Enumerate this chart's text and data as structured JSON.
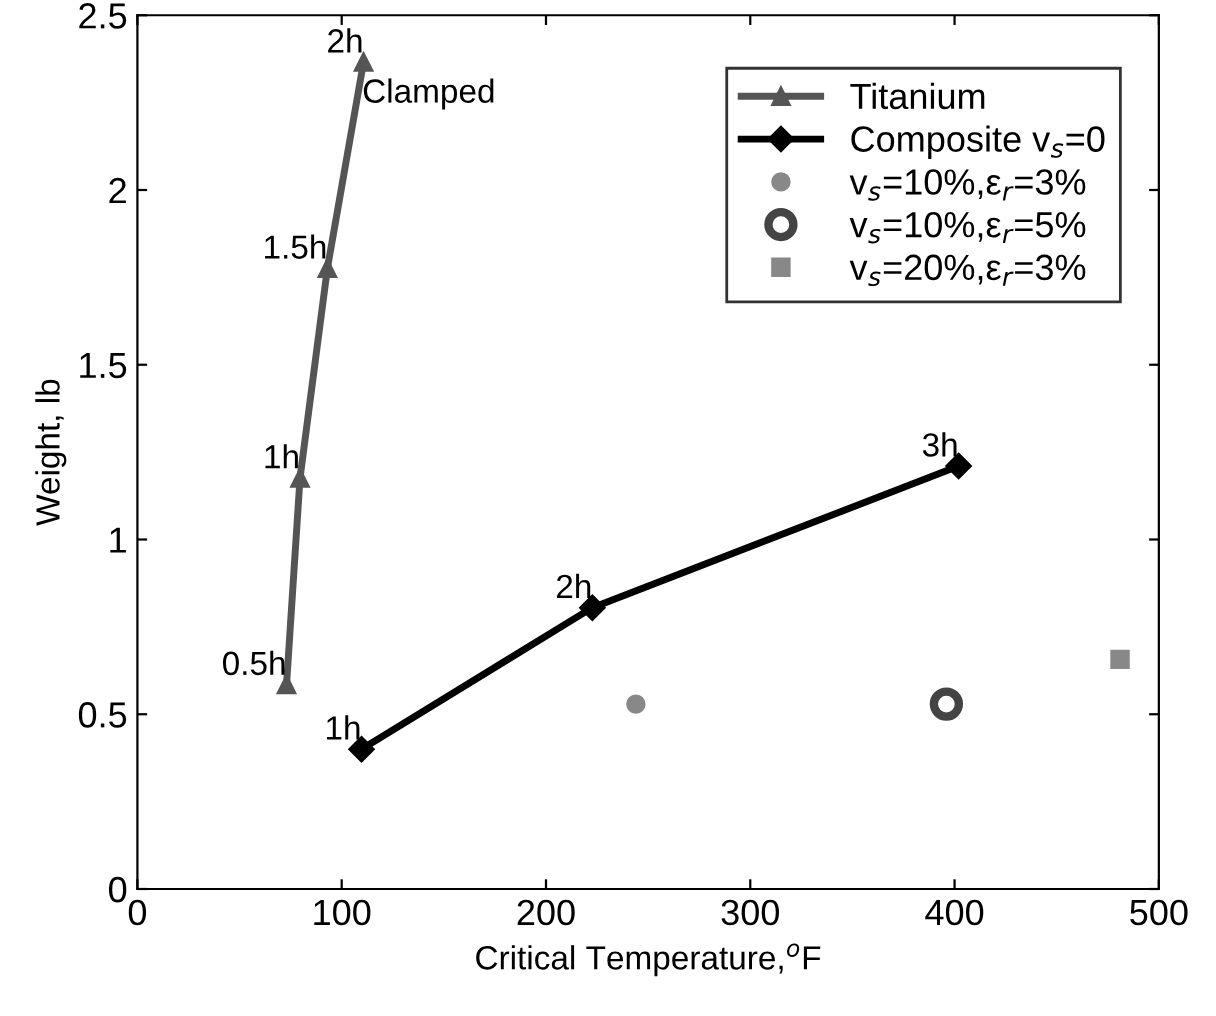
{
  "chart_data": {
    "type": "line",
    "xlabel": "Critical Temperature,$^{o}$F",
    "ylabel": "Weight, lb",
    "xlim": [
      0,
      500
    ],
    "xticks": [
      0,
      100,
      200,
      300,
      400,
      500
    ],
    "ylim": [
      0,
      2.5
    ],
    "yticks": [
      0,
      0.5,
      1,
      1.5,
      2,
      2.5
    ],
    "grid": false,
    "legend": "top right",
    "series": [
      {
        "name": "Titanium",
        "color": "#555555",
        "marker": "triangle",
        "x": [
          73,
          79.6,
          93,
          110.7
        ],
        "values": [
          0.585,
          1.176,
          1.776,
          2.366
        ]
      },
      {
        "name": "Composite v$_{s}$=0",
        "color": "#000000",
        "marker": "diamond",
        "x": [
          109.7,
          222.7,
          402
        ],
        "values": [
          0.4,
          0.805,
          1.21
        ]
      },
      {
        "name": "v$_{s}$=10%,ε$_{r}$=3%",
        "type": "scatter",
        "color": "#888888",
        "marker": "circle",
        "x": [
          244
        ],
        "values": [
          0.529
        ]
      },
      {
        "name": "v$_{s}$=10%,ε$_{r}$=5%",
        "type": "scatter",
        "color": "#444444",
        "marker": "circle",
        "x": [
          396
        ],
        "values": [
          0.529
        ]
      },
      {
        "name": "v$_{s}$=20%,ε$_{r}$=3%",
        "type": "scatter",
        "color": "#888888",
        "marker": "square",
        "x": [
          481
        ],
        "values": [
          0.657
        ]
      }
    ],
    "annotations": [
      {
        "text": "0.5h",
        "x": 73,
        "y": 0.585
      },
      {
        "text": "1h",
        "x": 79.6,
        "y": 1.176
      },
      {
        "text": "1.5h",
        "x": 93,
        "y": 1.776
      },
      {
        "text": "2h",
        "x": 110.7,
        "y": 2.366
      },
      {
        "text": "1h",
        "x": 109.7,
        "y": 0.4
      },
      {
        "text": "2h",
        "x": 222.7,
        "y": 0.805
      },
      {
        "text": "3h",
        "x": 402,
        "y": 1.21
      },
      "Clamped"
    ]
  }
}
